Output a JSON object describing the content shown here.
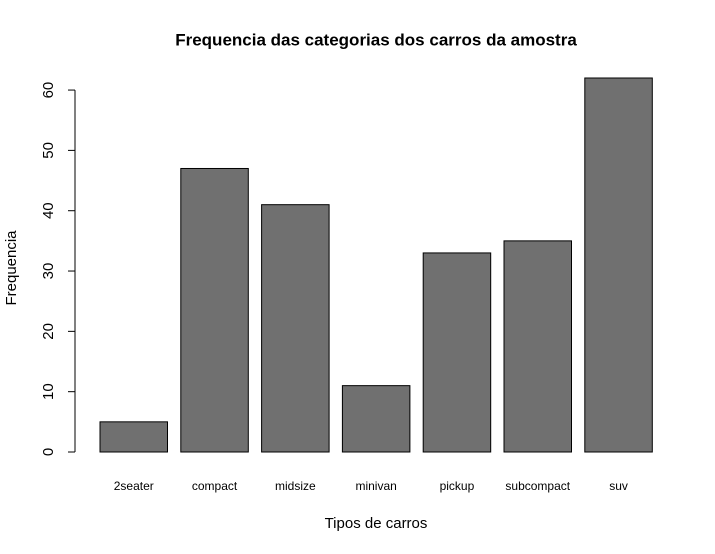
{
  "chart_data": {
    "type": "bar",
    "title": "Frequencia das categorias dos carros da amostra",
    "x_label": "Tipos de carros",
    "y_label": "Frequencia",
    "categories": [
      "2seater",
      "compact",
      "midsize",
      "minivan",
      "pickup",
      "subcompact",
      "suv"
    ],
    "values": [
      5,
      47,
      41,
      11,
      33,
      35,
      62
    ],
    "color": "#707070",
    "ylim": [
      0,
      62
    ],
    "yticks": [
      0,
      10,
      20,
      30,
      40,
      50,
      60
    ],
    "grid": false
  }
}
